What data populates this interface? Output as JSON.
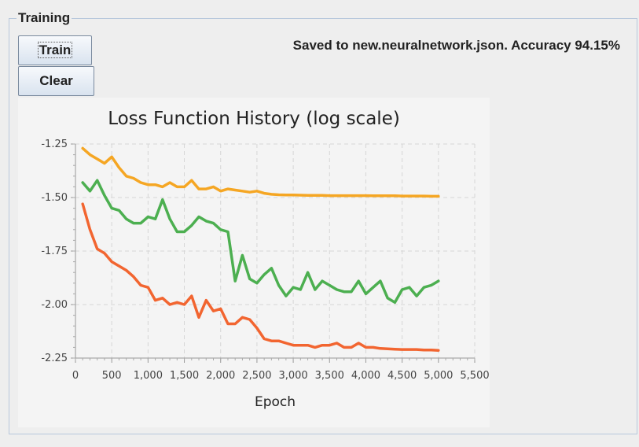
{
  "group": {
    "title": "Training"
  },
  "buttons": {
    "train": "Train",
    "clear": "Clear"
  },
  "status": {
    "message": "Saved to new.neuralnetwork.json. Accuracy 94.15%"
  },
  "chart_data": {
    "type": "line",
    "title": "Loss Function History (log scale)",
    "xlabel": "Epoch",
    "ylabel": "",
    "xlim": [
      0,
      5500
    ],
    "ylim": [
      -2.25,
      -1.25
    ],
    "xticks": [
      "0",
      "500",
      "1,000",
      "1,500",
      "2,000",
      "2,500",
      "3,000",
      "3,500",
      "4,000",
      "4,500",
      "5,000",
      "5,500"
    ],
    "yticks": [
      "-1.25",
      "-1.50",
      "-1.75",
      "-2.00",
      "-2.25"
    ],
    "grid": true,
    "legend": "none",
    "x": [
      100,
      200,
      300,
      400,
      500,
      600,
      700,
      800,
      900,
      1000,
      1100,
      1200,
      1300,
      1400,
      1500,
      1600,
      1700,
      1800,
      1900,
      2000,
      2100,
      2200,
      2300,
      2400,
      2500,
      2600,
      2700,
      2800,
      2900,
      3000,
      3100,
      3200,
      3300,
      3400,
      3500,
      3600,
      3700,
      3800,
      3900,
      4000,
      4100,
      4200,
      4300,
      4400,
      4500,
      4600,
      4700,
      4800,
      4900,
      5000
    ],
    "series": [
      {
        "color": "#f5a623",
        "values": [
          -1.27,
          -1.3,
          -1.32,
          -1.34,
          -1.31,
          -1.36,
          -1.4,
          -1.41,
          -1.43,
          -1.44,
          -1.44,
          -1.45,
          -1.43,
          -1.45,
          -1.45,
          -1.42,
          -1.46,
          -1.46,
          -1.45,
          -1.47,
          -1.46,
          -1.465,
          -1.47,
          -1.475,
          -1.47,
          -1.48,
          -1.485,
          -1.487,
          -1.488,
          -1.488,
          -1.489,
          -1.49,
          -1.49,
          -1.49,
          -1.491,
          -1.491,
          -1.491,
          -1.491,
          -1.491,
          -1.491,
          -1.492,
          -1.492,
          -1.492,
          -1.492,
          -1.493,
          -1.493,
          -1.493,
          -1.493,
          -1.494,
          -1.494
        ]
      },
      {
        "color": "#4caf50",
        "values": [
          -1.43,
          -1.47,
          -1.42,
          -1.49,
          -1.55,
          -1.56,
          -1.6,
          -1.62,
          -1.62,
          -1.59,
          -1.6,
          -1.51,
          -1.6,
          -1.66,
          -1.66,
          -1.63,
          -1.59,
          -1.61,
          -1.62,
          -1.65,
          -1.66,
          -1.89,
          -1.77,
          -1.88,
          -1.9,
          -1.86,
          -1.83,
          -1.91,
          -1.96,
          -1.92,
          -1.93,
          -1.85,
          -1.93,
          -1.89,
          -1.91,
          -1.93,
          -1.94,
          -1.94,
          -1.89,
          -1.95,
          -1.92,
          -1.89,
          -1.97,
          -1.99,
          -1.93,
          -1.92,
          -1.96,
          -1.92,
          -1.91,
          -1.89
        ]
      },
      {
        "color": "#f26530",
        "values": [
          -1.53,
          -1.65,
          -1.74,
          -1.76,
          -1.8,
          -1.82,
          -1.84,
          -1.87,
          -1.91,
          -1.92,
          -1.98,
          -1.97,
          -2.0,
          -1.99,
          -2.0,
          -1.96,
          -2.06,
          -1.98,
          -2.03,
          -2.02,
          -2.09,
          -2.09,
          -2.06,
          -2.07,
          -2.11,
          -2.16,
          -2.17,
          -2.17,
          -2.18,
          -2.19,
          -2.19,
          -2.19,
          -2.2,
          -2.19,
          -2.19,
          -2.18,
          -2.2,
          -2.2,
          -2.18,
          -2.2,
          -2.2,
          -2.205,
          -2.207,
          -2.209,
          -2.21,
          -2.21,
          -2.21,
          -2.212,
          -2.212,
          -2.214
        ]
      }
    ]
  }
}
